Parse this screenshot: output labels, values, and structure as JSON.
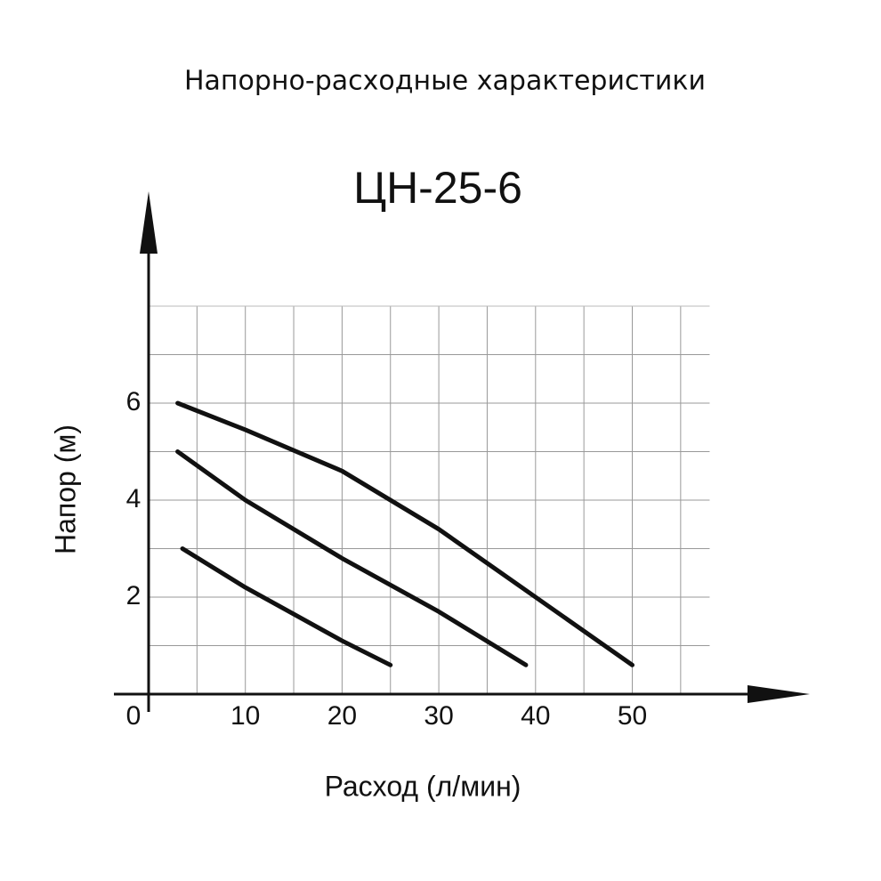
{
  "chart_data": {
    "type": "line",
    "title": "Напорно-расходные характеристики",
    "subtitle": "ЦН-25-6",
    "x_label": "Расход (л/мин)",
    "y_label": "Напор (м)",
    "xlim": [
      0,
      58
    ],
    "ylim": [
      0,
      8
    ],
    "xticks": [
      0,
      10,
      20,
      30,
      40,
      50
    ],
    "yticks": [
      2,
      4,
      6
    ],
    "x_grid": [
      5,
      10,
      15,
      20,
      25,
      30,
      35,
      40,
      45,
      50,
      55
    ],
    "y_grid": [
      1,
      2,
      3,
      4,
      5,
      6,
      7
    ],
    "grid": true,
    "series": [
      {
        "color": "#111111",
        "x": [
          3,
          10,
          20,
          30,
          40,
          50
        ],
        "values": [
          6,
          5.45,
          4.6,
          3.4,
          2.0,
          0.6
        ]
      },
      {
        "color": "#111111",
        "x": [
          3,
          10,
          20,
          30,
          39
        ],
        "values": [
          5,
          4.0,
          2.8,
          1.7,
          0.6
        ]
      },
      {
        "color": "#111111",
        "x": [
          3.5,
          10,
          20,
          25
        ],
        "values": [
          3,
          2.2,
          1.1,
          0.6
        ]
      }
    ]
  }
}
